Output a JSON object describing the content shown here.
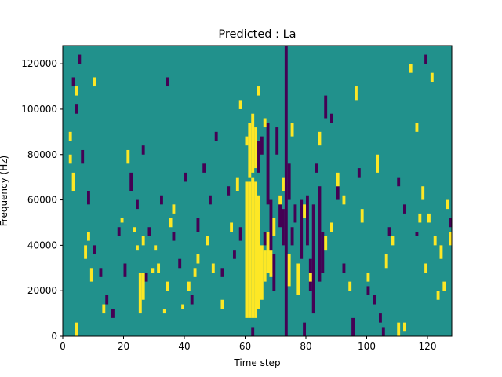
{
  "chart_data": {
    "type": "heatmap",
    "title": "Predicted : La",
    "xlabel": "Time step",
    "ylabel": "Frequency (Hz)",
    "xlim": [
      0,
      128
    ],
    "ylim": [
      0,
      128000
    ],
    "x_ticks": [
      "0",
      "20",
      "40",
      "60",
      "80",
      "100",
      "120"
    ],
    "x_tick_values": [
      0,
      20,
      40,
      60,
      80,
      100,
      120
    ],
    "y_ticks": [
      "0",
      "20000",
      "40000",
      "60000",
      "80000",
      "100000",
      "120000"
    ],
    "y_tick_values": [
      0,
      20000,
      40000,
      60000,
      80000,
      100000,
      120000
    ],
    "grid": false,
    "legend": "none",
    "colormap": "viridis",
    "colors": {
      "background": "#21918c",
      "low": "#440154",
      "high": "#fde725"
    },
    "cell_width_steps": 1,
    "cell_height_hz": 2000,
    "high_cells": [
      [
        60,
        8000,
        68000
      ],
      [
        61,
        8000,
        68000
      ],
      [
        62,
        8000,
        70000
      ],
      [
        63,
        8000,
        68000
      ],
      [
        64,
        12000,
        62000
      ],
      [
        61,
        70000,
        94000
      ],
      [
        62,
        72000,
        98000
      ],
      [
        63,
        74000,
        92000
      ],
      [
        60,
        84000,
        88000
      ],
      [
        65,
        16000,
        40000
      ],
      [
        66,
        24000,
        38000
      ],
      [
        67,
        28000,
        46000
      ],
      [
        68,
        26000,
        38000
      ],
      [
        25,
        10000,
        28000
      ],
      [
        26,
        16000,
        28000
      ],
      [
        29,
        28000,
        30000
      ],
      [
        31,
        28000,
        32000
      ],
      [
        4,
        0,
        6000
      ],
      [
        7,
        34000,
        40000
      ],
      [
        8,
        42000,
        46000
      ],
      [
        9,
        24000,
        30000
      ],
      [
        3,
        64000,
        72000
      ],
      [
        2,
        76000,
        80000
      ],
      [
        2,
        86000,
        90000
      ],
      [
        4,
        106000,
        110000
      ],
      [
        10,
        110000,
        114000
      ],
      [
        13,
        10000,
        14000
      ],
      [
        19,
        50000,
        52000
      ],
      [
        21,
        76000,
        82000
      ],
      [
        23,
        46000,
        48000
      ],
      [
        24,
        38000,
        40000
      ],
      [
        26,
        40000,
        44000
      ],
      [
        30,
        38000,
        40000
      ],
      [
        33,
        10000,
        12000
      ],
      [
        34,
        20000,
        24000
      ],
      [
        35,
        48000,
        52000
      ],
      [
        36,
        54000,
        58000
      ],
      [
        39,
        12000,
        14000
      ],
      [
        41,
        20000,
        24000
      ],
      [
        43,
        26000,
        30000
      ],
      [
        44,
        32000,
        36000
      ],
      [
        47,
        40000,
        44000
      ],
      [
        49,
        28000,
        32000
      ],
      [
        52,
        12000,
        16000
      ],
      [
        55,
        46000,
        50000
      ],
      [
        57,
        64000,
        70000
      ],
      [
        58,
        100000,
        104000
      ],
      [
        64,
        106000,
        110000
      ],
      [
        66,
        92000,
        96000
      ],
      [
        69,
        44000,
        52000
      ],
      [
        71,
        58000,
        62000
      ],
      [
        72,
        64000,
        70000
      ],
      [
        74,
        22000,
        36000
      ],
      [
        75,
        88000,
        94000
      ],
      [
        77,
        18000,
        32000
      ],
      [
        79,
        52000,
        58000
      ],
      [
        81,
        24000,
        28000
      ],
      [
        84,
        84000,
        90000
      ],
      [
        86,
        38000,
        44000
      ],
      [
        88,
        46000,
        50000
      ],
      [
        90,
        66000,
        72000
      ],
      [
        92,
        58000,
        62000
      ],
      [
        94,
        20000,
        24000
      ],
      [
        96,
        104000,
        110000
      ],
      [
        98,
        50000,
        56000
      ],
      [
        100,
        24000,
        28000
      ],
      [
        103,
        72000,
        80000
      ],
      [
        106,
        30000,
        36000
      ],
      [
        108,
        40000,
        44000
      ],
      [
        110,
        0,
        6000
      ],
      [
        112,
        2000,
        6000
      ],
      [
        114,
        116000,
        120000
      ],
      [
        116,
        90000,
        94000
      ],
      [
        118,
        60000,
        66000
      ],
      [
        120,
        50000,
        54000
      ],
      [
        122,
        40000,
        44000
      ],
      [
        124,
        34000,
        40000
      ],
      [
        125,
        20000,
        24000
      ],
      [
        126,
        56000,
        60000
      ],
      [
        127,
        40000,
        46000
      ],
      [
        117,
        50000,
        54000
      ],
      [
        119,
        28000,
        32000
      ],
      [
        121,
        112000,
        116000
      ],
      [
        123,
        16000,
        20000
      ],
      [
        128,
        28000,
        32000
      ]
    ],
    "low_cells": [
      [
        62,
        0,
        4000
      ],
      [
        64,
        72000,
        86000
      ],
      [
        65,
        80000,
        88000
      ],
      [
        66,
        40000,
        46000
      ],
      [
        67,
        58000,
        94000
      ],
      [
        68,
        28000,
        60000
      ],
      [
        69,
        20000,
        36000
      ],
      [
        70,
        80000,
        92000
      ],
      [
        71,
        48000,
        62000
      ],
      [
        72,
        40000,
        56000
      ],
      [
        73,
        0,
        128000
      ],
      [
        74,
        60000,
        76000
      ],
      [
        75,
        40000,
        48000
      ],
      [
        76,
        50000,
        58000
      ],
      [
        78,
        34000,
        60000
      ],
      [
        79,
        0,
        6000
      ],
      [
        80,
        40000,
        62000
      ],
      [
        81,
        20000,
        34000
      ],
      [
        82,
        10000,
        58000
      ],
      [
        83,
        72000,
        76000
      ],
      [
        84,
        24000,
        66000
      ],
      [
        85,
        28000,
        46000
      ],
      [
        86,
        96000,
        106000
      ],
      [
        88,
        94000,
        98000
      ],
      [
        90,
        60000,
        66000
      ],
      [
        92,
        28000,
        32000
      ],
      [
        95,
        0,
        8000
      ],
      [
        97,
        70000,
        74000
      ],
      [
        100,
        18000,
        22000
      ],
      [
        102,
        14000,
        18000
      ],
      [
        104,
        6000,
        10000
      ],
      [
        105,
        0,
        4000
      ],
      [
        107,
        44000,
        48000
      ],
      [
        110,
        66000,
        70000
      ],
      [
        112,
        54000,
        58000
      ],
      [
        116,
        44000,
        46000
      ],
      [
        5,
        120000,
        124000
      ],
      [
        3,
        110000,
        114000
      ],
      [
        4,
        98000,
        102000
      ],
      [
        6,
        76000,
        82000
      ],
      [
        8,
        58000,
        64000
      ],
      [
        10,
        36000,
        40000
      ],
      [
        12,
        26000,
        30000
      ],
      [
        14,
        14000,
        18000
      ],
      [
        16,
        8000,
        12000
      ],
      [
        18,
        44000,
        48000
      ],
      [
        20,
        26000,
        32000
      ],
      [
        22,
        64000,
        72000
      ],
      [
        24,
        56000,
        60000
      ],
      [
        26,
        80000,
        84000
      ],
      [
        27,
        24000,
        28000
      ],
      [
        28,
        44000,
        48000
      ],
      [
        32,
        58000,
        62000
      ],
      [
        34,
        110000,
        114000
      ],
      [
        36,
        42000,
        46000
      ],
      [
        38,
        30000,
        34000
      ],
      [
        40,
        68000,
        72000
      ],
      [
        42,
        14000,
        18000
      ],
      [
        44,
        46000,
        52000
      ],
      [
        46,
        72000,
        76000
      ],
      [
        48,
        58000,
        62000
      ],
      [
        50,
        86000,
        90000
      ],
      [
        52,
        26000,
        30000
      ],
      [
        54,
        62000,
        66000
      ],
      [
        56,
        34000,
        38000
      ],
      [
        58,
        42000,
        48000
      ],
      [
        119,
        120000,
        124000
      ],
      [
        127,
        48000,
        52000
      ]
    ]
  }
}
